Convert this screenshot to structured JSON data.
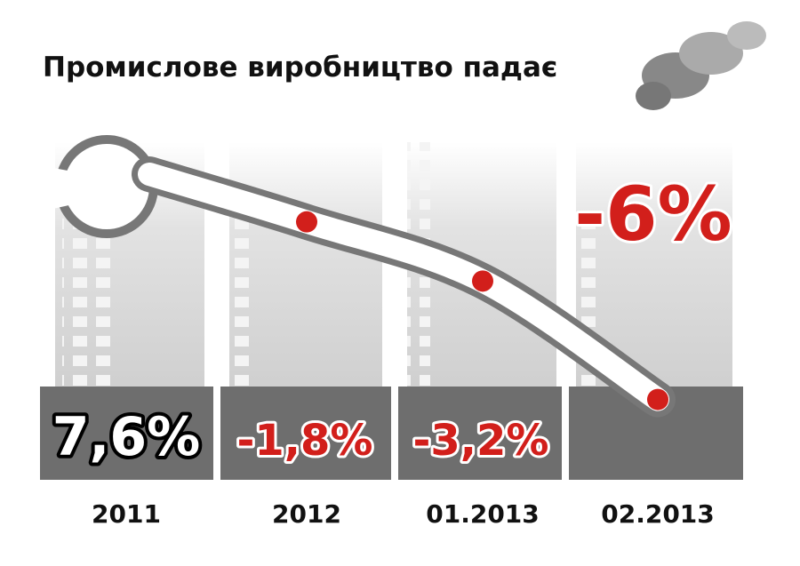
{
  "chart_data": {
    "type": "wrench-curve",
    "title": "Промислове виробництво падає",
    "categories": [
      "2011",
      "2012",
      "01.2013",
      "02.2013"
    ],
    "values": [
      7.6,
      -1.8,
      -3.2,
      -6
    ],
    "value_labels": [
      "7,6%",
      "-1,8%",
      "-3,2%",
      "-6%"
    ],
    "color": "#d21f1b"
  }
}
